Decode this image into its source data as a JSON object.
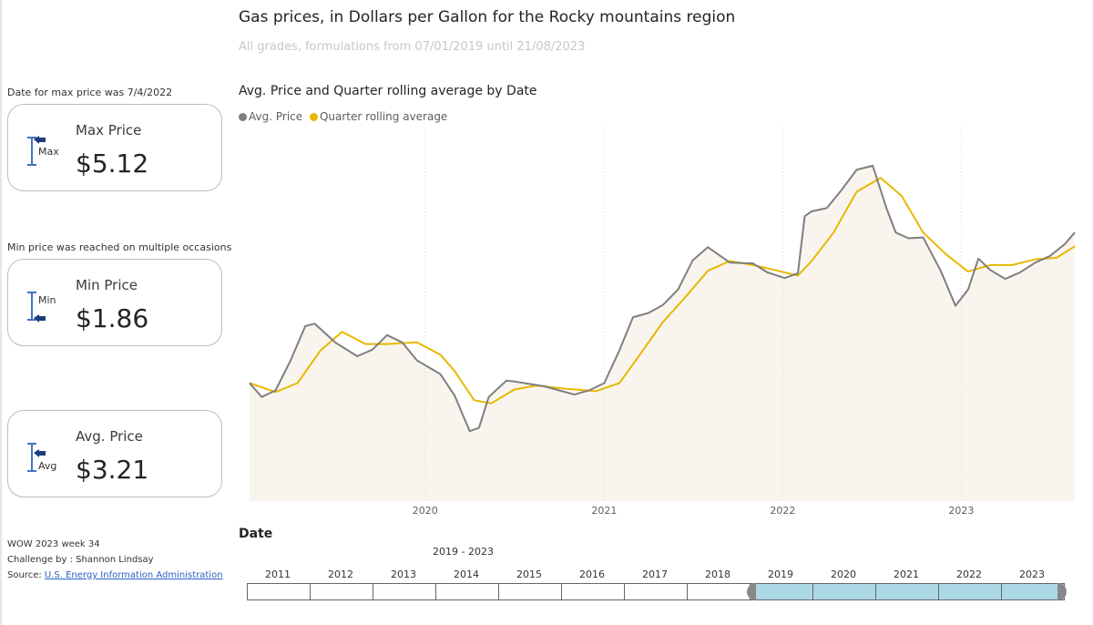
{
  "header": {
    "title": "Gas prices, in Dollars per Gallon for the Rocky mountains region",
    "subtitle": "All grades, formulations from 07/01/2019 until 21/08/2023"
  },
  "notes": {
    "max_note": "Date for max price was 7/4/2022",
    "min_note": "Min price was reached on multiple occasions"
  },
  "cards": {
    "max": {
      "label": "Max Price",
      "value": "$5.12",
      "icon_text": "Max",
      "icon": "max-arrow-icon"
    },
    "min": {
      "label": "Min Price",
      "value": "$1.86",
      "icon_text": "Min",
      "icon": "min-arrow-icon"
    },
    "avg": {
      "label": "Avg. Price",
      "value": "$3.21",
      "icon_text": "Avg",
      "icon": "avg-arrow-icon"
    }
  },
  "footer": {
    "line1": "WOW 2023 week 34",
    "line2": "Challenge by : Shannon Lindsay",
    "source_label": "Source:",
    "source_link": "U.S. Energy Information Administration"
  },
  "chart_data": {
    "type": "line",
    "title": "Avg. Price and Quarter rolling average by Date",
    "xlabel": "Date",
    "ylabel": "",
    "x_ticks": [
      "2020",
      "2021",
      "2022",
      "2023"
    ],
    "xlim": [
      "2019-01-07",
      "2023-08-21"
    ],
    "ylim": [
      1.0,
      5.5
    ],
    "grid": "vertical dotted",
    "legend": "top-left",
    "colors": {
      "avg": "#7f7f7f",
      "rolling": "#e8b800",
      "area": "#f9f5ee"
    },
    "series": [
      {
        "name": "Avg. Price",
        "points": [
          [
            "2019-01-07",
            2.45
          ],
          [
            "2019-02-01",
            2.28
          ],
          [
            "2019-03-01",
            2.36
          ],
          [
            "2019-04-01",
            2.73
          ],
          [
            "2019-05-01",
            3.15
          ],
          [
            "2019-05-20",
            3.18
          ],
          [
            "2019-07-01",
            2.95
          ],
          [
            "2019-08-15",
            2.78
          ],
          [
            "2019-09-15",
            2.86
          ],
          [
            "2019-10-15",
            3.04
          ],
          [
            "2019-11-15",
            2.95
          ],
          [
            "2019-12-15",
            2.73
          ],
          [
            "2020-02-01",
            2.56
          ],
          [
            "2020-03-01",
            2.3
          ],
          [
            "2020-04-01",
            1.86
          ],
          [
            "2020-04-20",
            1.9
          ],
          [
            "2020-05-10",
            2.28
          ],
          [
            "2020-06-15",
            2.48
          ],
          [
            "2020-07-01",
            2.47
          ],
          [
            "2020-08-01",
            2.44
          ],
          [
            "2020-09-01",
            2.41
          ],
          [
            "2020-10-01",
            2.36
          ],
          [
            "2020-11-01",
            2.31
          ],
          [
            "2020-12-01",
            2.36
          ],
          [
            "2021-01-01",
            2.45
          ],
          [
            "2021-02-01",
            2.85
          ],
          [
            "2021-03-01",
            3.26
          ],
          [
            "2021-04-01",
            3.31
          ],
          [
            "2021-05-01",
            3.41
          ],
          [
            "2021-06-01",
            3.6
          ],
          [
            "2021-07-01",
            3.96
          ],
          [
            "2021-08-01",
            4.12
          ],
          [
            "2021-09-15",
            3.93
          ],
          [
            "2021-11-01",
            3.92
          ],
          [
            "2021-12-01",
            3.81
          ],
          [
            "2022-01-05",
            3.74
          ],
          [
            "2022-02-01",
            3.8
          ],
          [
            "2022-02-15",
            4.5
          ],
          [
            "2022-03-01",
            4.56
          ],
          [
            "2022-04-01",
            4.6
          ],
          [
            "2022-05-01",
            4.82
          ],
          [
            "2022-06-01",
            5.07
          ],
          [
            "2022-07-04",
            5.12
          ],
          [
            "2022-08-01",
            4.6
          ],
          [
            "2022-08-20",
            4.3
          ],
          [
            "2022-09-15",
            4.23
          ],
          [
            "2022-10-15",
            4.24
          ],
          [
            "2022-11-20",
            3.83
          ],
          [
            "2022-12-20",
            3.4
          ],
          [
            "2023-01-15",
            3.6
          ],
          [
            "2023-02-05",
            3.98
          ],
          [
            "2023-03-01",
            3.84
          ],
          [
            "2023-04-01",
            3.73
          ],
          [
            "2023-05-01",
            3.81
          ],
          [
            "2023-06-01",
            3.93
          ],
          [
            "2023-07-01",
            4.01
          ],
          [
            "2023-08-01",
            4.16
          ],
          [
            "2023-08-21",
            4.3
          ]
        ]
      },
      {
        "name": "Quarter rolling average",
        "points": [
          [
            "2019-01-07",
            2.45
          ],
          [
            "2019-03-01",
            2.34
          ],
          [
            "2019-04-15",
            2.45
          ],
          [
            "2019-06-01",
            2.85
          ],
          [
            "2019-07-15",
            3.08
          ],
          [
            "2019-09-01",
            2.93
          ],
          [
            "2019-10-15",
            2.93
          ],
          [
            "2019-12-15",
            2.95
          ],
          [
            "2020-02-01",
            2.8
          ],
          [
            "2020-03-01",
            2.6
          ],
          [
            "2020-04-10",
            2.24
          ],
          [
            "2020-05-15",
            2.2
          ],
          [
            "2020-07-01",
            2.37
          ],
          [
            "2020-08-15",
            2.42
          ],
          [
            "2020-10-15",
            2.38
          ],
          [
            "2020-12-15",
            2.35
          ],
          [
            "2021-02-01",
            2.45
          ],
          [
            "2021-03-15",
            2.8
          ],
          [
            "2021-05-01",
            3.2
          ],
          [
            "2021-06-15",
            3.5
          ],
          [
            "2021-08-01",
            3.83
          ],
          [
            "2021-09-15",
            3.95
          ],
          [
            "2021-11-01",
            3.9
          ],
          [
            "2021-12-15",
            3.84
          ],
          [
            "2022-02-01",
            3.77
          ],
          [
            "2022-03-01",
            3.95
          ],
          [
            "2022-04-15",
            4.3
          ],
          [
            "2022-06-01",
            4.8
          ],
          [
            "2022-07-20",
            4.97
          ],
          [
            "2022-09-01",
            4.75
          ],
          [
            "2022-10-15",
            4.3
          ],
          [
            "2022-12-01",
            4.03
          ],
          [
            "2023-01-15",
            3.82
          ],
          [
            "2023-03-01",
            3.9
          ],
          [
            "2023-04-15",
            3.9
          ],
          [
            "2023-06-01",
            3.97
          ],
          [
            "2023-07-15",
            3.99
          ],
          [
            "2023-08-21",
            4.13
          ]
        ]
      }
    ]
  },
  "slicer": {
    "title": "Date",
    "range_label": "2019 - 2023",
    "years": [
      "2011",
      "2012",
      "2013",
      "2014",
      "2015",
      "2016",
      "2017",
      "2018",
      "2019",
      "2020",
      "2021",
      "2022",
      "2023"
    ],
    "selected": [
      "2019",
      "2020",
      "2021",
      "2022",
      "2023"
    ]
  }
}
